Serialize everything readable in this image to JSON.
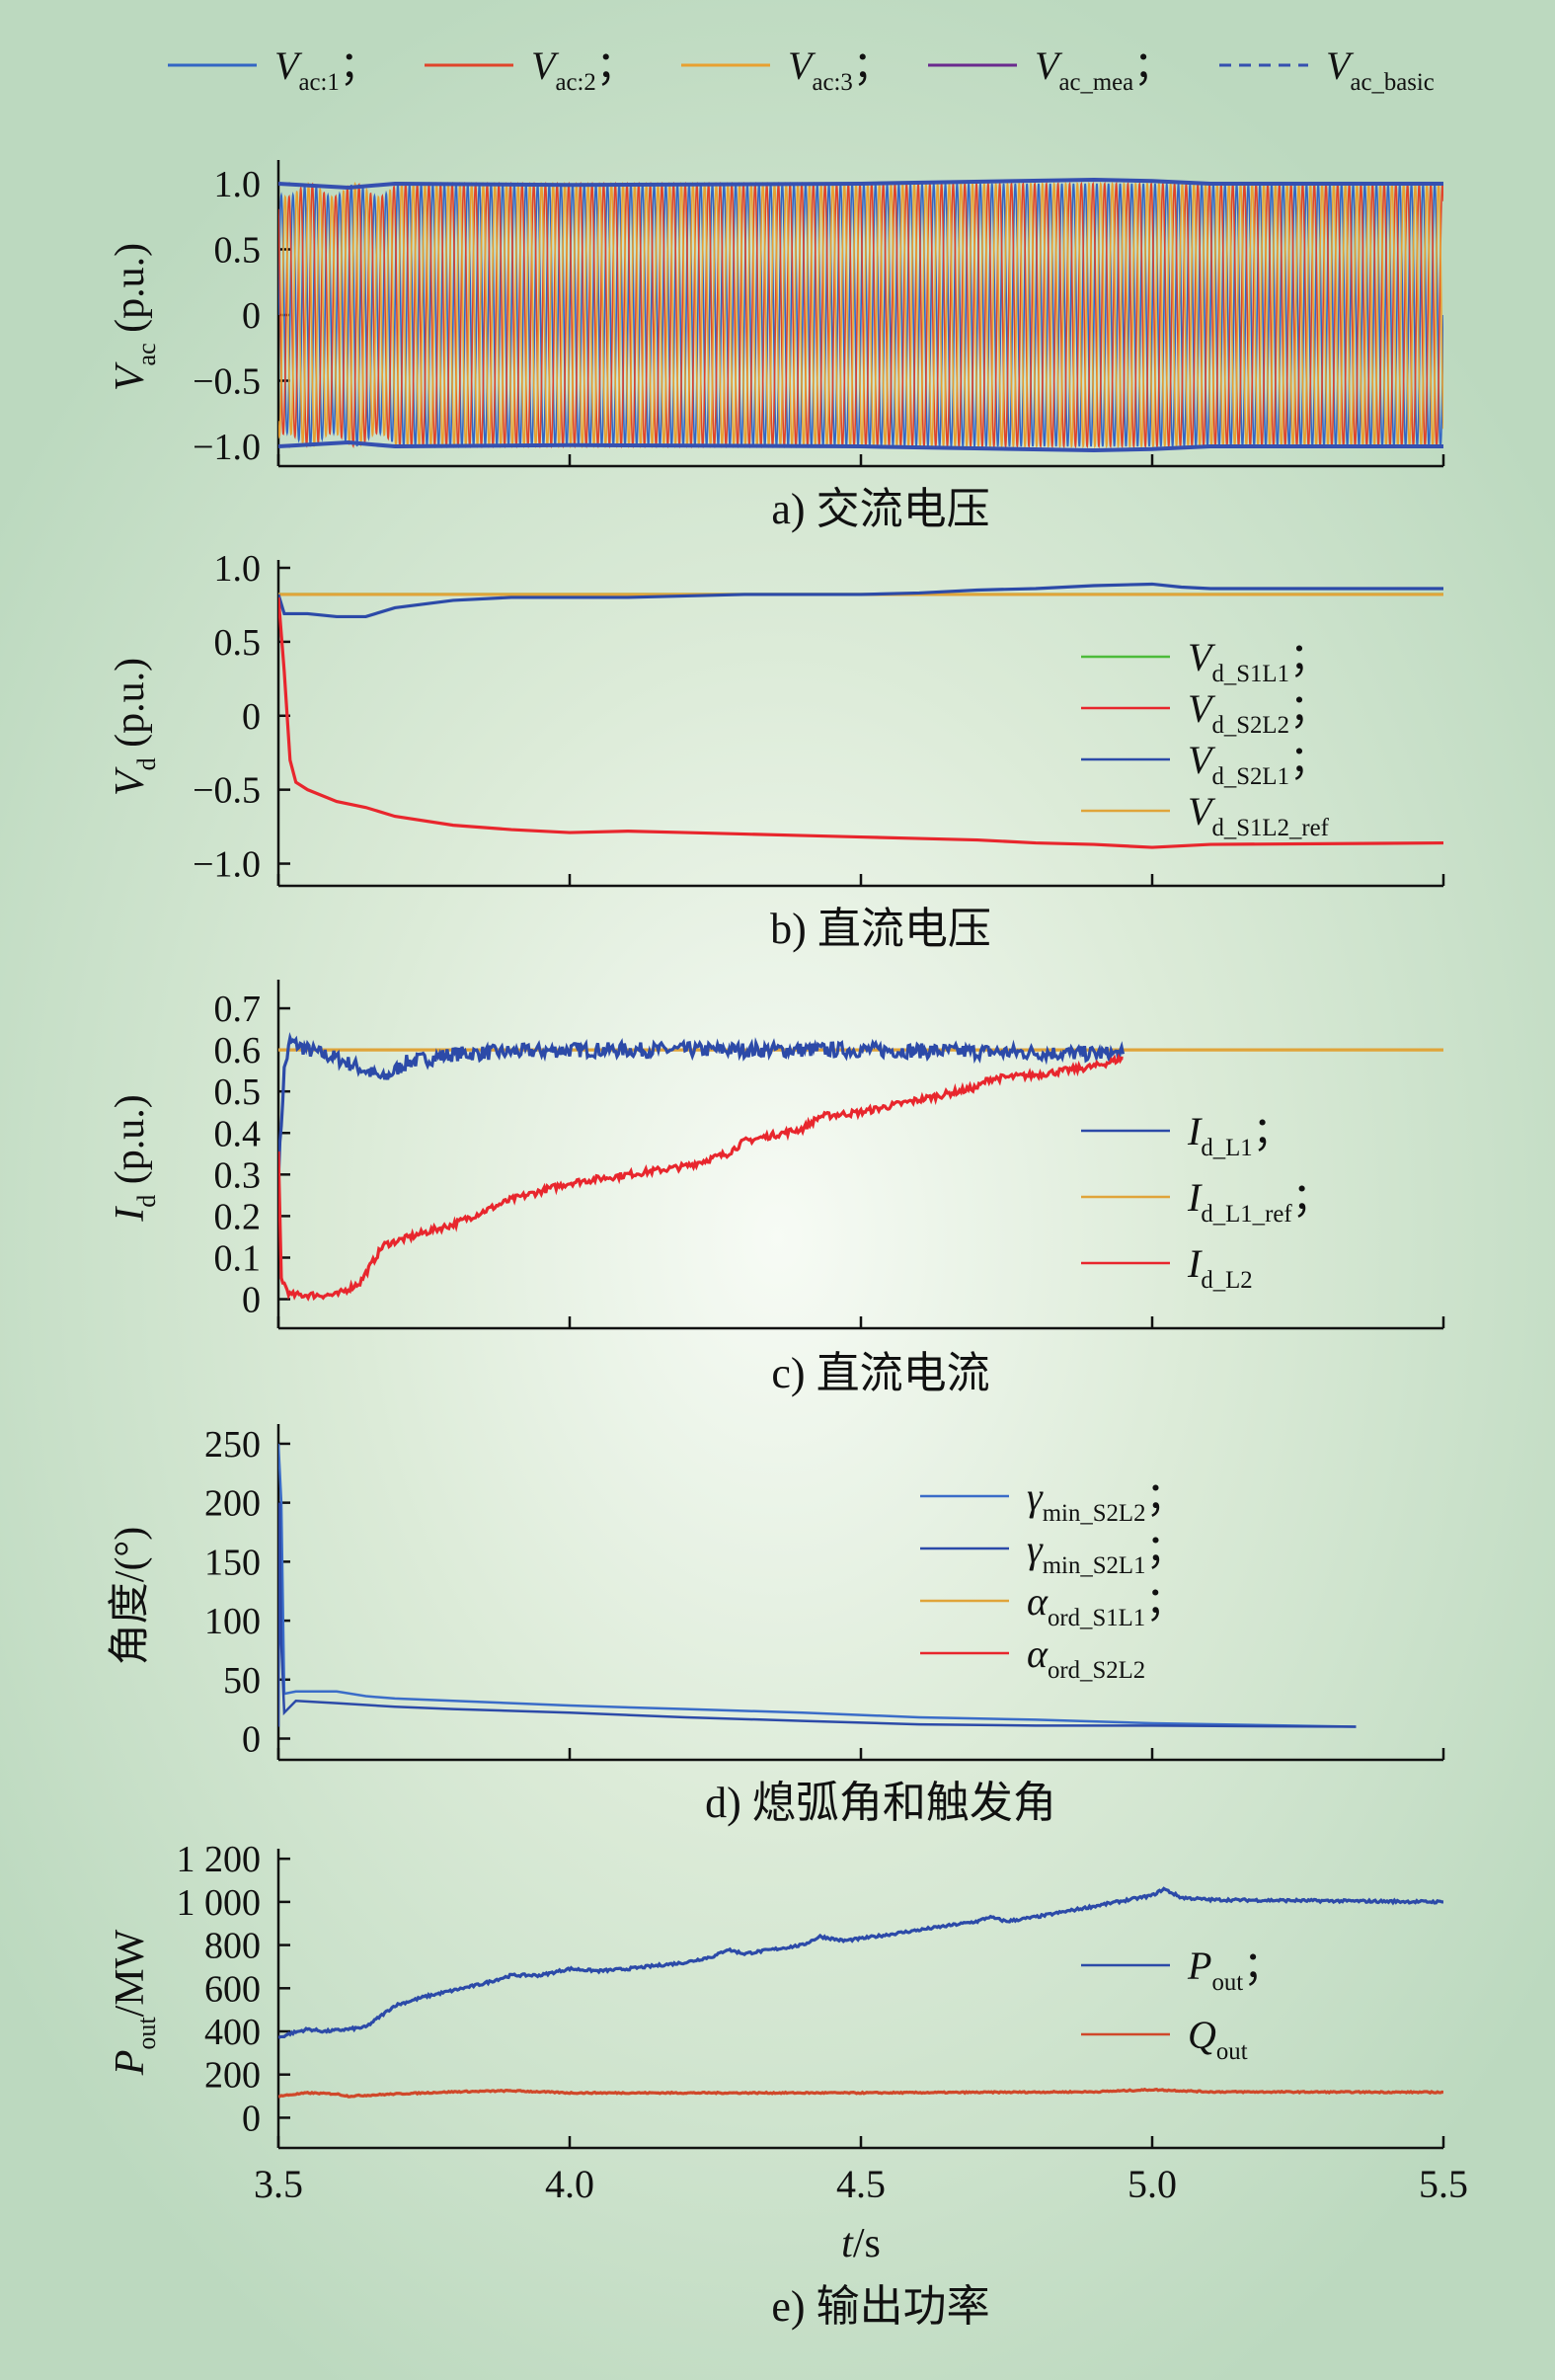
{
  "colors": {
    "vac1": "#3366c4",
    "vac2": "#e0442a",
    "vac3": "#e8a030",
    "vmea": "#6a2a8e",
    "vbasic": "#3550b0",
    "green": "#4cbb3a",
    "red": "#e8262d",
    "blue": "#2c4aa8",
    "orange": "#e0a43a",
    "gamma2": "#3a6cc8",
    "gamma1": "#2c4aa8",
    "pout": "#2c4aa8",
    "qout": "#d0482a"
  },
  "top_legend": [
    {
      "key": "vac1",
      "sym": "V",
      "sub": "ac:1",
      "suffix": "；",
      "style": "solid"
    },
    {
      "key": "vac2",
      "sym": "V",
      "sub": "ac:2",
      "suffix": "；",
      "style": "solid"
    },
    {
      "key": "vac3",
      "sym": "V",
      "sub": "ac:3",
      "suffix": "；",
      "style": "solid"
    },
    {
      "key": "vmea",
      "sym": "V",
      "sub": "ac_mea",
      "suffix": "；",
      "style": "solid"
    },
    {
      "key": "vbasic",
      "sym": "V",
      "sub": "ac_basic",
      "suffix": "",
      "style": "dashed"
    }
  ],
  "xaxis": {
    "label_sym": "t",
    "label_rest": "/s",
    "ticks": [
      "3.5",
      "4.0",
      "4.5",
      "5.0",
      "5.5"
    ],
    "range": [
      3.5,
      5.5
    ]
  },
  "chart_data": [
    {
      "id": "a",
      "type": "line",
      "caption": "a) 交流电压",
      "ylabel": {
        "sym": "V",
        "sub": "ac",
        "rest": " (p.u.)"
      },
      "yticks": [
        "1.0",
        "0.5",
        "0",
        "−0.5",
        "−1.0"
      ],
      "ytick_values": [
        1.0,
        0.5,
        0,
        -0.5,
        -1.0
      ],
      "ylim": [
        -1.15,
        1.12
      ],
      "series": [
        {
          "key": "vac1",
          "ac": true,
          "note": "three-phase sine ~50 Hz, amplitude ~1.0 p.u."
        },
        {
          "key": "vac2",
          "ac": true
        },
        {
          "key": "vac3",
          "ac": true
        },
        {
          "key": "vbasic",
          "envelope": [
            [
              3.5,
              1.0
            ],
            [
              3.62,
              0.97
            ],
            [
              3.7,
              1.0
            ],
            [
              4.0,
              0.99
            ],
            [
              4.5,
              1.0
            ],
            [
              4.9,
              1.03
            ],
            [
              5.0,
              1.02
            ],
            [
              5.1,
              1.0
            ],
            [
              5.5,
              1.0
            ]
          ]
        }
      ],
      "legend": []
    },
    {
      "id": "b",
      "type": "line",
      "caption": "b) 直流电压",
      "ylabel": {
        "sym": "V",
        "sub": "d",
        "rest": " (p.u.)"
      },
      "yticks": [
        "1.0",
        "0.5",
        "0",
        "−0.5",
        "−1.0"
      ],
      "ytick_values": [
        1.0,
        0.5,
        0,
        -0.5,
        -1.0
      ],
      "ylim": [
        -1.15,
        1.0
      ],
      "series": [
        {
          "key": "green",
          "points": [
            [
              3.5,
              0.82
            ],
            [
              5.5,
              0.82
            ]
          ]
        },
        {
          "key": "orange",
          "points": [
            [
              3.5,
              0.82
            ],
            [
              5.5,
              0.82
            ]
          ]
        },
        {
          "key": "blue",
          "points": [
            [
              3.5,
              0.82
            ],
            [
              3.51,
              0.69
            ],
            [
              3.55,
              0.69
            ],
            [
              3.6,
              0.67
            ],
            [
              3.65,
              0.67
            ],
            [
              3.7,
              0.73
            ],
            [
              3.8,
              0.78
            ],
            [
              3.9,
              0.8
            ],
            [
              4.0,
              0.8
            ],
            [
              4.1,
              0.8
            ],
            [
              4.2,
              0.81
            ],
            [
              4.3,
              0.82
            ],
            [
              4.4,
              0.82
            ],
            [
              4.5,
              0.82
            ],
            [
              4.6,
              0.83
            ],
            [
              4.7,
              0.85
            ],
            [
              4.8,
              0.86
            ],
            [
              4.9,
              0.88
            ],
            [
              5.0,
              0.89
            ],
            [
              5.05,
              0.87
            ],
            [
              5.1,
              0.86
            ],
            [
              5.5,
              0.86
            ]
          ]
        },
        {
          "key": "red",
          "points": [
            [
              3.5,
              0.8
            ],
            [
              3.51,
              0.3
            ],
            [
              3.52,
              -0.3
            ],
            [
              3.53,
              -0.45
            ],
            [
              3.55,
              -0.5
            ],
            [
              3.6,
              -0.58
            ],
            [
              3.65,
              -0.62
            ],
            [
              3.7,
              -0.68
            ],
            [
              3.8,
              -0.74
            ],
            [
              3.9,
              -0.77
            ],
            [
              4.0,
              -0.79
            ],
            [
              4.1,
              -0.78
            ],
            [
              4.2,
              -0.79
            ],
            [
              4.3,
              -0.8
            ],
            [
              4.4,
              -0.81
            ],
            [
              4.5,
              -0.82
            ],
            [
              4.6,
              -0.83
            ],
            [
              4.7,
              -0.84
            ],
            [
              4.8,
              -0.86
            ],
            [
              4.9,
              -0.87
            ],
            [
              5.0,
              -0.89
            ],
            [
              5.05,
              -0.88
            ],
            [
              5.1,
              -0.87
            ],
            [
              5.5,
              -0.86
            ]
          ]
        }
      ],
      "legend": [
        {
          "key": "green",
          "sym": "V",
          "sub": "d_S1L1",
          "suffix": "；"
        },
        {
          "key": "red",
          "sym": "V",
          "sub": "d_S2L2",
          "suffix": "；"
        },
        {
          "key": "blue",
          "sym": "V",
          "sub": "d_S2L1",
          "suffix": "；"
        },
        {
          "key": "orange",
          "sym": "V",
          "sub": "d_S1L2_ref",
          "suffix": ""
        }
      ]
    },
    {
      "id": "c",
      "type": "line",
      "caption": "c) 直流电流",
      "ylabel": {
        "sym": "I",
        "sub": "d",
        "rest": " (p.u.)"
      },
      "yticks": [
        "0.7",
        "0.6",
        "0.5",
        "0.4",
        "0.3",
        "0.2",
        "0.1",
        "0"
      ],
      "ytick_values": [
        0.7,
        0.6,
        0.5,
        0.4,
        0.3,
        0.2,
        0.1,
        0
      ],
      "ylim": [
        -0.07,
        0.75
      ],
      "series": [
        {
          "key": "orange",
          "points": [
            [
              3.5,
              0.6
            ],
            [
              5.5,
              0.6
            ]
          ]
        },
        {
          "key": "blue",
          "noise": 0.018,
          "points": [
            [
              3.5,
              0.3
            ],
            [
              3.51,
              0.55
            ],
            [
              3.52,
              0.62
            ],
            [
              3.55,
              0.6
            ],
            [
              3.6,
              0.58
            ],
            [
              3.65,
              0.55
            ],
            [
              3.68,
              0.53
            ],
            [
              3.72,
              0.57
            ],
            [
              3.8,
              0.59
            ],
            [
              4.0,
              0.6
            ],
            [
              4.5,
              0.6
            ],
            [
              4.95,
              0.59
            ]
          ]
        },
        {
          "key": "red",
          "noise": 0.008,
          "points": [
            [
              3.5,
              0.35
            ],
            [
              3.505,
              0.05
            ],
            [
              3.52,
              0.01
            ],
            [
              3.6,
              0.01
            ],
            [
              3.64,
              0.04
            ],
            [
              3.68,
              0.13
            ],
            [
              3.75,
              0.16
            ],
            [
              3.8,
              0.18
            ],
            [
              3.9,
              0.24
            ],
            [
              4.0,
              0.28
            ],
            [
              4.1,
              0.3
            ],
            [
              4.2,
              0.32
            ],
            [
              4.27,
              0.35
            ],
            [
              4.3,
              0.38
            ],
            [
              4.4,
              0.41
            ],
            [
              4.43,
              0.44
            ],
            [
              4.5,
              0.45
            ],
            [
              4.6,
              0.48
            ],
            [
              4.7,
              0.51
            ],
            [
              4.72,
              0.53
            ],
            [
              4.8,
              0.54
            ],
            [
              4.9,
              0.56
            ],
            [
              4.95,
              0.58
            ]
          ]
        }
      ],
      "legend": [
        {
          "key": "blue",
          "sym": "I",
          "sub": "d_L1",
          "suffix": "；"
        },
        {
          "key": "orange",
          "sym": "I",
          "sub": "d_L1_ref",
          "suffix": "；"
        },
        {
          "key": "red",
          "sym": "I",
          "sub": "d_L2",
          "suffix": ""
        }
      ]
    },
    {
      "id": "d",
      "type": "line",
      "caption": "d) 熄弧角和触发角",
      "ylabel": {
        "sym": "",
        "sub": "",
        "rest": "角度/(°)"
      },
      "yticks": [
        "250",
        "200",
        "150",
        "100",
        "50",
        "0"
      ],
      "ytick_values": [
        250,
        200,
        150,
        100,
        50,
        0
      ],
      "ylim": [
        -18,
        260
      ],
      "series": [
        {
          "key": "gamma2",
          "points": [
            [
              3.5,
              250
            ],
            [
              3.505,
              200
            ],
            [
              3.51,
              38
            ],
            [
              3.53,
              40
            ],
            [
              3.6,
              40
            ],
            [
              3.65,
              36
            ],
            [
              3.7,
              34
            ],
            [
              3.8,
              32
            ],
            [
              4.0,
              28
            ],
            [
              4.2,
              25
            ],
            [
              4.4,
              22
            ],
            [
              4.6,
              18
            ],
            [
              4.8,
              16
            ],
            [
              5.0,
              13
            ],
            [
              5.35,
              10
            ]
          ]
        },
        {
          "key": "gamma1",
          "points": [
            [
              3.5,
              10
            ],
            [
              3.502,
              200
            ],
            [
              3.505,
              80
            ],
            [
              3.51,
              22
            ],
            [
              3.53,
              32
            ],
            [
              3.6,
              30
            ],
            [
              3.7,
              27
            ],
            [
              3.8,
              25
            ],
            [
              4.0,
              22
            ],
            [
              4.2,
              18
            ],
            [
              4.4,
              15
            ],
            [
              4.6,
              12
            ],
            [
              4.8,
              11
            ],
            [
              5.0,
              11
            ],
            [
              5.35,
              10
            ]
          ]
        }
      ],
      "legend": [
        {
          "key": "gamma2",
          "sym": "γ",
          "sub": "min_S2L2",
          "suffix": "；"
        },
        {
          "key": "gamma1",
          "sym": "γ",
          "sub": "min_S2L1",
          "suffix": "；"
        },
        {
          "key": "orange",
          "sym": "α",
          "sub": "ord_S1L1",
          "suffix": "；"
        },
        {
          "key": "red",
          "sym": "α",
          "sub": "ord_S2L2",
          "suffix": ""
        }
      ]
    },
    {
      "id": "e",
      "type": "line",
      "caption": "e) 输出功率",
      "ylabel": {
        "sym": "P",
        "sub": "out",
        "rest": "/MW"
      },
      "yticks": [
        "1 200",
        "1 000",
        "800",
        "600",
        "400",
        "200",
        "0"
      ],
      "ytick_values": [
        1200,
        1000,
        800,
        600,
        400,
        200,
        0
      ],
      "ylim": [
        -140,
        1210
      ],
      "series": [
        {
          "key": "pout",
          "noise": 6,
          "points": [
            [
              3.5,
              370
            ],
            [
              3.52,
              390
            ],
            [
              3.55,
              410
            ],
            [
              3.58,
              400
            ],
            [
              3.62,
              410
            ],
            [
              3.65,
              420
            ],
            [
              3.7,
              520
            ],
            [
              3.75,
              560
            ],
            [
              3.8,
              590
            ],
            [
              3.85,
              620
            ],
            [
              3.9,
              660
            ],
            [
              3.95,
              660
            ],
            [
              4.0,
              690
            ],
            [
              4.05,
              680
            ],
            [
              4.1,
              690
            ],
            [
              4.2,
              720
            ],
            [
              4.25,
              750
            ],
            [
              4.27,
              780
            ],
            [
              4.3,
              760
            ],
            [
              4.4,
              800
            ],
            [
              4.43,
              840
            ],
            [
              4.47,
              820
            ],
            [
              4.5,
              830
            ],
            [
              4.6,
              870
            ],
            [
              4.7,
              910
            ],
            [
              4.72,
              930
            ],
            [
              4.75,
              910
            ],
            [
              4.8,
              930
            ],
            [
              4.9,
              980
            ],
            [
              5.0,
              1030
            ],
            [
              5.02,
              1060
            ],
            [
              5.05,
              1020
            ],
            [
              5.1,
              1010
            ],
            [
              5.5,
              1000
            ]
          ]
        },
        {
          "key": "qout",
          "noise": 3,
          "points": [
            [
              3.5,
              100
            ],
            [
              3.55,
              115
            ],
            [
              3.6,
              110
            ],
            [
              3.62,
              100
            ],
            [
              3.7,
              110
            ],
            [
              3.8,
              120
            ],
            [
              3.9,
              125
            ],
            [
              4.0,
              115
            ],
            [
              4.5,
              115
            ],
            [
              4.9,
              120
            ],
            [
              5.0,
              130
            ],
            [
              5.1,
              120
            ],
            [
              5.5,
              118
            ]
          ]
        }
      ],
      "legend": [
        {
          "key": "pout",
          "sym": "P",
          "sub": "out",
          "suffix": "；"
        },
        {
          "key": "qout",
          "sym": "Q",
          "sub": "out",
          "suffix": ""
        }
      ]
    }
  ]
}
